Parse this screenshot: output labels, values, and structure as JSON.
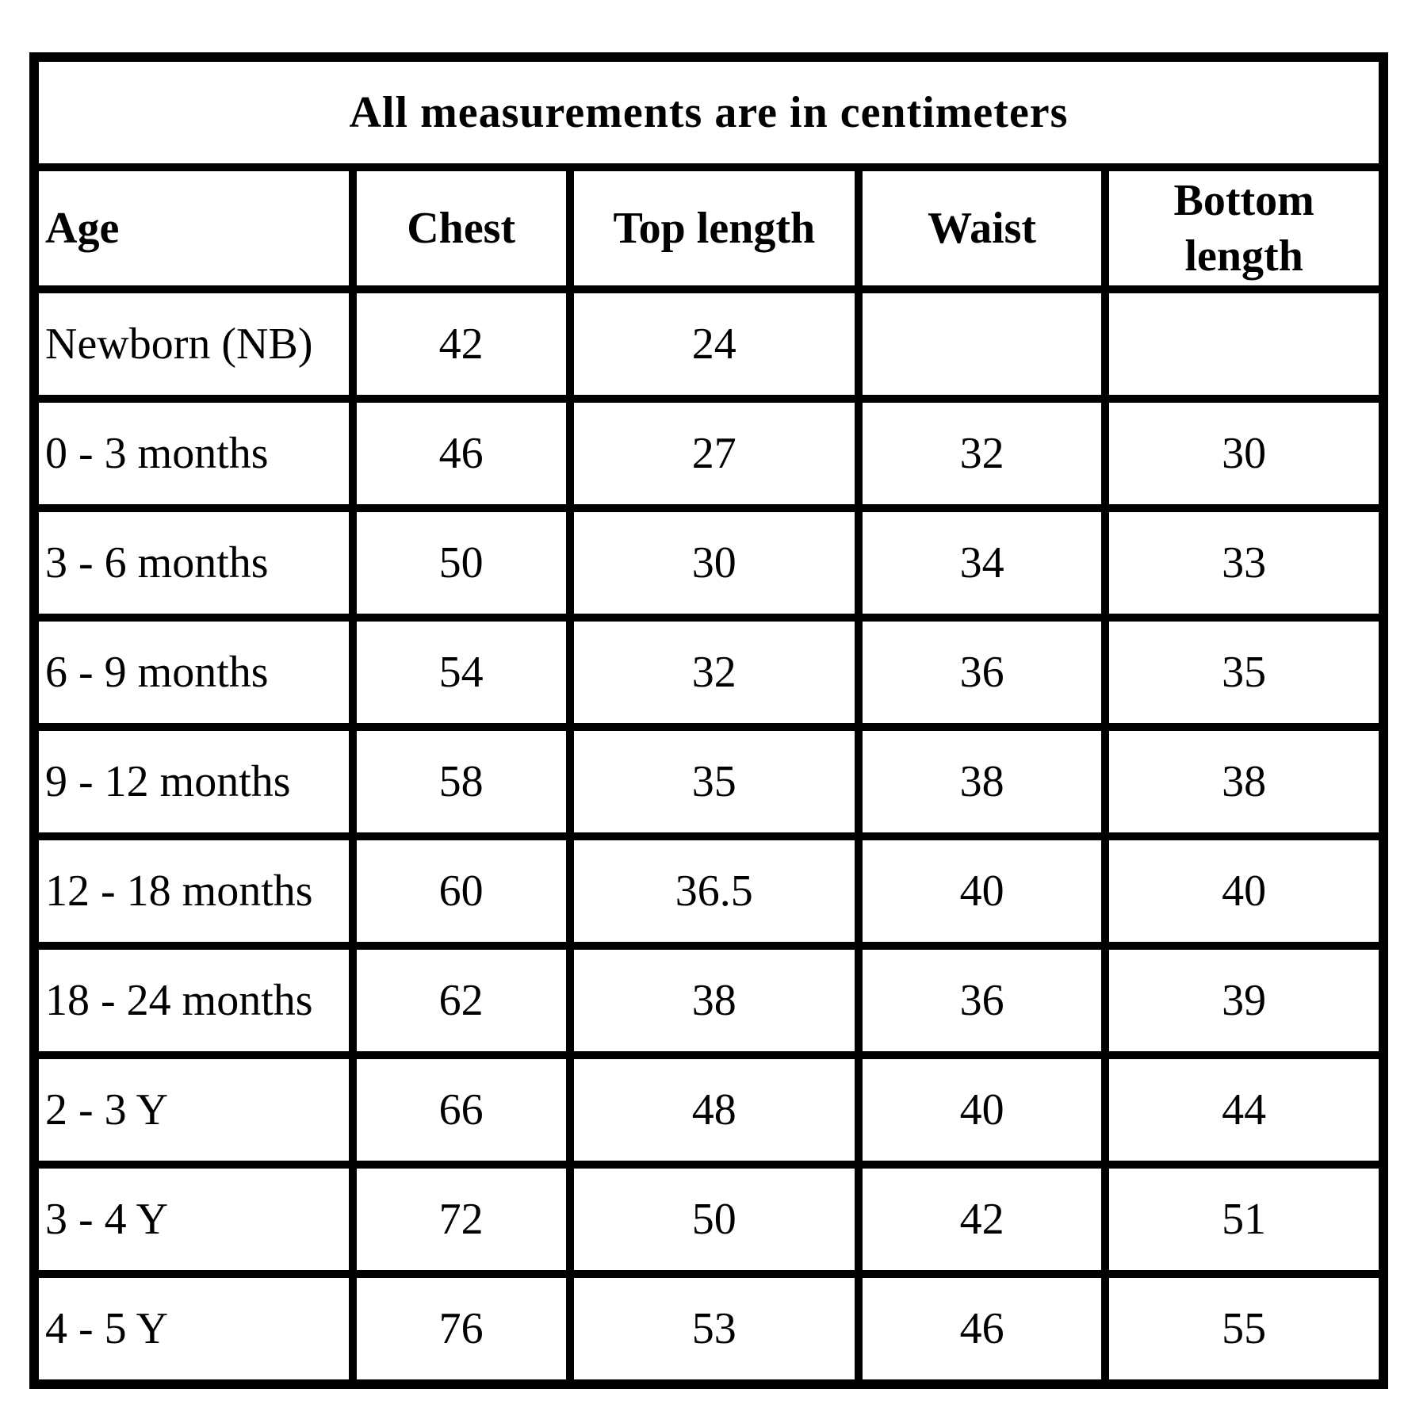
{
  "page": {
    "background_color": "#ffffff",
    "border_color": "#000000",
    "text_color": "#000000"
  },
  "table": {
    "title": "All measurements are in centimeters",
    "columns": [
      "Age",
      "Chest",
      "Top length",
      "Waist",
      "Bottom length"
    ],
    "rows": [
      [
        "Newborn (NB)",
        "42",
        "24",
        "",
        ""
      ],
      [
        "0 - 3 months",
        "46",
        "27",
        "32",
        "30"
      ],
      [
        "3 - 6 months",
        "50",
        "30",
        "34",
        "33"
      ],
      [
        "6 - 9 months",
        "54",
        "32",
        "36",
        "35"
      ],
      [
        "9 - 12 months",
        "58",
        "35",
        "38",
        "38"
      ],
      [
        "12 - 18 months",
        "60",
        "36.5",
        "40",
        "40"
      ],
      [
        "18 - 24 months",
        "62",
        "38",
        "36",
        "39"
      ],
      [
        "2 - 3 Y",
        "66",
        "48",
        "40",
        "44"
      ],
      [
        "3 - 4 Y",
        "72",
        "50",
        "42",
        "51"
      ],
      [
        "4 - 5 Y",
        "76",
        "53",
        "46",
        "55"
      ]
    ]
  }
}
